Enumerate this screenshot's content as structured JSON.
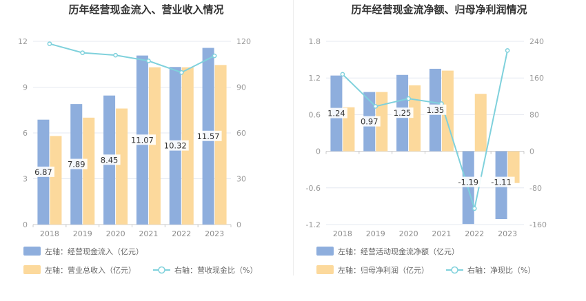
{
  "chart_data": [
    {
      "type": "bar",
      "title": "历年经营现金流入、营业收入情况",
      "categories": [
        "2018",
        "2019",
        "2020",
        "2021",
        "2022",
        "2023"
      ],
      "y_left": {
        "lim": [
          0,
          12
        ],
        "ticks": [
          "0",
          "3",
          "6",
          "9",
          "12"
        ]
      },
      "y_right": {
        "lim": [
          0,
          120
        ],
        "ticks": [
          "0",
          "30",
          "60",
          "90",
          "120"
        ]
      },
      "series": [
        {
          "name": "左轴：经营现金流入（亿元）",
          "type": "bar",
          "axis": "left",
          "color": "#8eaedd",
          "values": [
            6.87,
            7.89,
            8.45,
            11.07,
            10.32,
            11.57
          ],
          "labels": [
            "6.87",
            "7.89",
            "8.45",
            "11.07",
            "10.32",
            "11.57"
          ]
        },
        {
          "name": "左轴：营业总收入（亿元）",
          "type": "bar",
          "axis": "left",
          "color": "#fcd99c",
          "values": [
            5.8,
            7.0,
            7.6,
            10.3,
            10.3,
            10.45
          ]
        },
        {
          "name": "右轴：营收现金比（%）",
          "type": "line",
          "axis": "right",
          "color": "#7fd1dc",
          "values": [
            118.4,
            112.5,
            110.9,
            107.2,
            99.6,
            110.5
          ]
        }
      ]
    },
    {
      "type": "bar",
      "title": "历年经营现金流净额、归母净利润情况",
      "categories": [
        "2018",
        "2019",
        "2020",
        "2021",
        "2022",
        "2023"
      ],
      "y_left": {
        "lim": [
          -1.2,
          1.8
        ],
        "ticks": [
          "-1.2",
          "-0.6",
          "0",
          "0.6",
          "1.2",
          "1.8"
        ]
      },
      "y_right": {
        "lim": [
          -160,
          240
        ],
        "ticks": [
          "-160",
          "-80",
          "0",
          "80",
          "160",
          "240"
        ]
      },
      "series": [
        {
          "name": "左轴：经营活动现金流净额（亿元）",
          "type": "bar",
          "axis": "left",
          "color": "#8eaedd",
          "values": [
            1.24,
            0.97,
            1.25,
            1.35,
            -1.19,
            -1.11
          ],
          "labels": [
            "1.24",
            "0.97",
            "1.25",
            "1.35",
            "-1.19",
            "-1.11"
          ]
        },
        {
          "name": "左轴：归母净利润（亿元）",
          "type": "bar",
          "axis": "left",
          "color": "#fcd99c",
          "values": [
            0.72,
            0.97,
            1.08,
            1.32,
            0.94,
            -0.52
          ]
        },
        {
          "name": "右轴：净现比（%）",
          "type": "line",
          "axis": "right",
          "color": "#7fd1dc",
          "values": [
            168,
            98,
            115,
            104,
            -125,
            220
          ]
        }
      ]
    }
  ]
}
